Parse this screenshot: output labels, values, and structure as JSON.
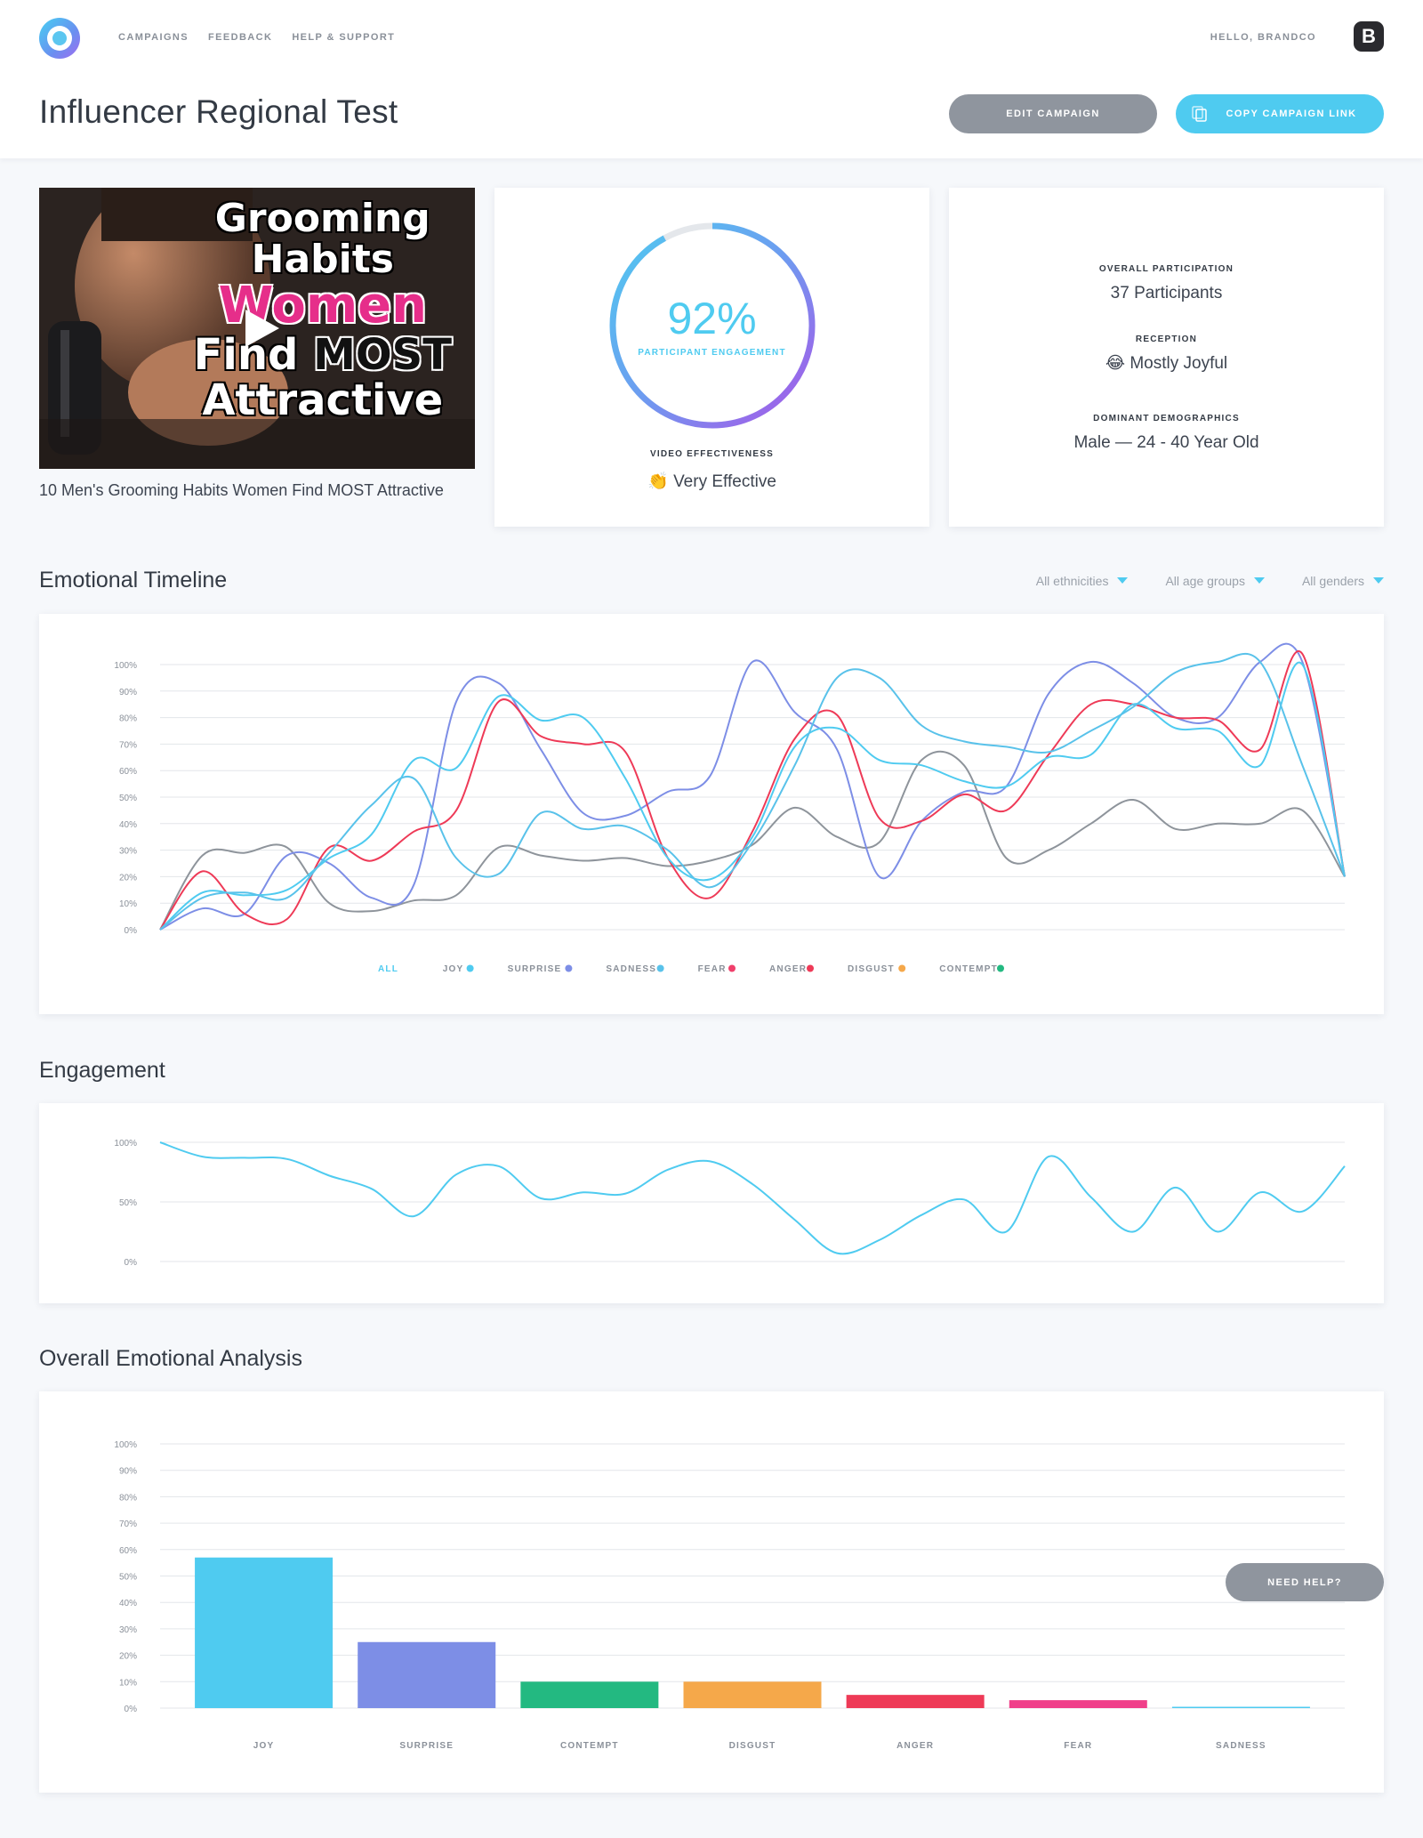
{
  "nav": {
    "items": [
      "CAMPAIGNS",
      "FEEDBACK",
      "HELP & SUPPORT"
    ],
    "greeting": "HELLO, BRANDCO",
    "avatar_letter": "B"
  },
  "page": {
    "title": "Influencer Regional Test",
    "edit_label": "EDIT CAMPAIGN",
    "copy_label": "COPY CAMPAIGN LINK"
  },
  "video": {
    "thumbnail_text": [
      "Grooming",
      "Habits",
      "Women",
      "Find",
      "MOST",
      "Attractive"
    ],
    "caption": "10 Men's Grooming Habits Women Find MOST Attractive"
  },
  "engagement_card": {
    "percent": "92%",
    "percent_value": 92,
    "sub_label": "PARTICIPANT ENGAGEMENT",
    "effectiveness_label": "VIDEO EFFECTIVENESS",
    "effectiveness_icon": "👏",
    "effectiveness_value": "Very Effective"
  },
  "stats_card": {
    "participation_label": "OVERALL PARTICIPATION",
    "participation_value": "37 Participants",
    "reception_label": "RECEPTION",
    "reception_icon": "😂",
    "reception_value": "Mostly Joyful",
    "demographics_label": "DOMINANT DEMOGRAPHICS",
    "demographics_value": "Male — 24 - 40 Year Old"
  },
  "timeline": {
    "title": "Emotional Timeline",
    "filters": [
      "All ethnicities",
      "All age groups",
      "All genders"
    ],
    "legend_all": "ALL"
  },
  "engagement_section": {
    "title": "Engagement"
  },
  "analysis_section": {
    "title": "Overall Emotional Analysis"
  },
  "help_label": "NEED HELP?",
  "colors": {
    "joy": "#4fcbf0",
    "surprise": "#7d8ee6",
    "sadness": "#59c2ea",
    "fear": "#f03f6b",
    "anger": "#ee3a57",
    "disgust": "#f5a84a",
    "contempt": "#23b981",
    "neutral": "#8e949b"
  },
  "chart_data": [
    {
      "type": "line",
      "name": "Emotional Timeline",
      "ylim": [
        0,
        100
      ],
      "yticks": [
        "0%",
        "10%",
        "20%",
        "30%",
        "40%",
        "50%",
        "60%",
        "70%",
        "80%",
        "90%",
        "100%"
      ],
      "legend": [
        {
          "label": "JOY",
          "color": "#4fcbf0"
        },
        {
          "label": "SURPRISE",
          "color": "#7d8ee6"
        },
        {
          "label": "SADNESS",
          "color": "#59c2ea"
        },
        {
          "label": "FEAR",
          "color": "#f03f6b"
        },
        {
          "label": "ANGER",
          "color": "#ee3a57"
        },
        {
          "label": "DISGUST",
          "color": "#f5a84a"
        },
        {
          "label": "CONTEMPT",
          "color": "#23b981"
        }
      ],
      "series": [
        {
          "color": "#8e949b",
          "values": [
            0,
            28,
            29,
            31,
            10,
            7,
            11,
            13,
            31,
            28,
            26,
            27,
            24,
            26,
            32,
            46,
            35,
            33,
            64,
            62,
            27,
            30,
            40,
            49,
            38,
            40,
            40,
            45,
            20
          ]
        },
        {
          "color": "#7d8ee6",
          "values": [
            0,
            8,
            6,
            28,
            25,
            12,
            17,
            86,
            93,
            68,
            44,
            43,
            52,
            58,
            101,
            82,
            68,
            20,
            41,
            52,
            54,
            89,
            101,
            93,
            80,
            80,
            101,
            101,
            20
          ]
        },
        {
          "color": "#ee3a57",
          "values": [
            0,
            22,
            6,
            4,
            31,
            26,
            37,
            45,
            86,
            73,
            70,
            67,
            27,
            12,
            37,
            72,
            81,
            42,
            41,
            51,
            45,
            66,
            85,
            85,
            80,
            79,
            68,
            104,
            20
          ]
        },
        {
          "color": "#4fcbf0",
          "values": [
            0,
            14,
            13,
            15,
            27,
            36,
            64,
            61,
            88,
            79,
            80,
            57,
            27,
            19,
            35,
            69,
            76,
            64,
            62,
            56,
            54,
            65,
            66,
            85,
            76,
            75,
            62,
            100,
            20
          ]
        },
        {
          "color": "#59c2ea",
          "values": [
            0,
            12,
            14,
            12,
            29,
            47,
            57,
            27,
            21,
            44,
            38,
            39,
            30,
            16,
            33,
            62,
            95,
            95,
            77,
            71,
            69,
            67,
            75,
            84,
            97,
            101,
            101,
            62,
            20
          ]
        }
      ]
    },
    {
      "type": "line",
      "name": "Engagement",
      "ylim": [
        0,
        100
      ],
      "yticks": [
        "0%",
        "50%",
        "100%"
      ],
      "series": [
        {
          "color": "#4fcbf0",
          "values": [
            100,
            88,
            87,
            86,
            72,
            61,
            38,
            73,
            80,
            53,
            58,
            57,
            77,
            84,
            65,
            35,
            7,
            18,
            39,
            52,
            25,
            88,
            54,
            25,
            62,
            25,
            58,
            42,
            80
          ]
        }
      ]
    },
    {
      "type": "bar",
      "name": "Overall Emotional Analysis",
      "categories": [
        "JOY",
        "SURPRISE",
        "CONTEMPT",
        "DISGUST",
        "ANGER",
        "FEAR",
        "SADNESS"
      ],
      "values": [
        57,
        25,
        10,
        10,
        5,
        3,
        0.5
      ],
      "colors": [
        "#4fcbf0",
        "#7d8ee6",
        "#23b981",
        "#f5a84a",
        "#ee3a57",
        "#f03f8a",
        "#4fcbf0"
      ],
      "ylim": [
        0,
        100
      ],
      "yticks": [
        "0%",
        "10%",
        "20%",
        "30%",
        "40%",
        "50%",
        "60%",
        "70%",
        "80%",
        "90%",
        "100%"
      ]
    }
  ]
}
